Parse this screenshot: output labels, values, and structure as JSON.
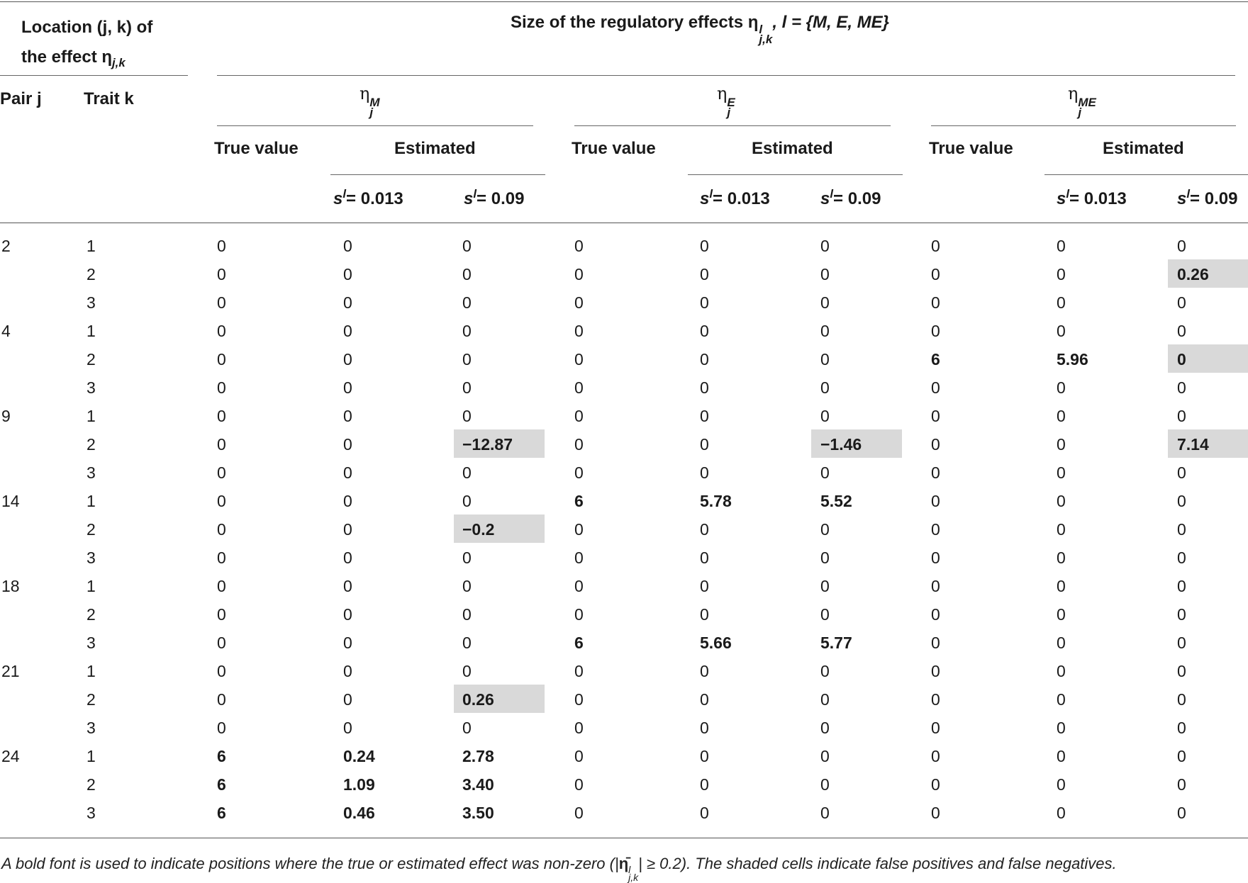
{
  "header": {
    "location_line1": "Location (j, k) of",
    "location_line2": "the effect η",
    "location_sub": "j,k",
    "size_title": "Size of the regulatory effects η",
    "size_sup": "l",
    "size_sub": "j,k",
    "size_set": ",  l = {M, E, ME}",
    "pair_label": "Pair j",
    "trait_label": "Trait k",
    "groups": [
      {
        "eta": "η",
        "sub": "j",
        "sup": "M"
      },
      {
        "eta": "η",
        "sub": "j",
        "sup": "E"
      },
      {
        "eta": "η",
        "sub": "j",
        "sup": "ME"
      }
    ],
    "true_value_label": "True value",
    "estimated_label": "Estimated",
    "s_label": "s",
    "s_sup": "l",
    "s_values": [
      "= 0.013",
      "= 0.09"
    ]
  },
  "rows": [
    {
      "pair": "2",
      "trait": "1",
      "v": [
        "0",
        "0",
        "0",
        "0",
        "0",
        "0",
        "0",
        "0",
        "0"
      ]
    },
    {
      "pair": "",
      "trait": "2",
      "v": [
        "0",
        "0",
        "0",
        "0",
        "0",
        "0",
        "0",
        "0",
        "0.26"
      ]
    },
    {
      "pair": "",
      "trait": "3",
      "v": [
        "0",
        "0",
        "0",
        "0",
        "0",
        "0",
        "0",
        "0",
        "0"
      ]
    },
    {
      "pair": "4",
      "trait": "1",
      "v": [
        "0",
        "0",
        "0",
        "0",
        "0",
        "0",
        "0",
        "0",
        "0"
      ]
    },
    {
      "pair": "",
      "trait": "2",
      "v": [
        "0",
        "0",
        "0",
        "0",
        "0",
        "0",
        "6",
        "5.96",
        "0"
      ]
    },
    {
      "pair": "",
      "trait": "3",
      "v": [
        "0",
        "0",
        "0",
        "0",
        "0",
        "0",
        "0",
        "0",
        "0"
      ]
    },
    {
      "pair": "9",
      "trait": "1",
      "v": [
        "0",
        "0",
        "0",
        "0",
        "0",
        "0",
        "0",
        "0",
        "0"
      ]
    },
    {
      "pair": "",
      "trait": "2",
      "v": [
        "0",
        "0",
        "−12.87",
        "0",
        "0",
        "−1.46",
        "0",
        "0",
        "7.14"
      ]
    },
    {
      "pair": "",
      "trait": "3",
      "v": [
        "0",
        "0",
        "0",
        "0",
        "0",
        "0",
        "0",
        "0",
        "0"
      ]
    },
    {
      "pair": "14",
      "trait": "1",
      "v": [
        "0",
        "0",
        "0",
        "6",
        "5.78",
        "5.52",
        "0",
        "0",
        "0"
      ]
    },
    {
      "pair": "",
      "trait": "2",
      "v": [
        "0",
        "0",
        "−0.2",
        "0",
        "0",
        "0",
        "0",
        "0",
        "0"
      ]
    },
    {
      "pair": "",
      "trait": "3",
      "v": [
        "0",
        "0",
        "0",
        "0",
        "0",
        "0",
        "0",
        "0",
        "0"
      ]
    },
    {
      "pair": "18",
      "trait": "1",
      "v": [
        "0",
        "0",
        "0",
        "0",
        "0",
        "0",
        "0",
        "0",
        "0"
      ]
    },
    {
      "pair": "",
      "trait": "2",
      "v": [
        "0",
        "0",
        "0",
        "0",
        "0",
        "0",
        "0",
        "0",
        "0"
      ]
    },
    {
      "pair": "",
      "trait": "3",
      "v": [
        "0",
        "0",
        "0",
        "6",
        "5.66",
        "5.77",
        "0",
        "0",
        "0"
      ]
    },
    {
      "pair": "21",
      "trait": "1",
      "v": [
        "0",
        "0",
        "0",
        "0",
        "0",
        "0",
        "0",
        "0",
        "0"
      ]
    },
    {
      "pair": "",
      "trait": "2",
      "v": [
        "0",
        "0",
        "0.26",
        "0",
        "0",
        "0",
        "0",
        "0",
        "0"
      ]
    },
    {
      "pair": "",
      "trait": "3",
      "v": [
        "0",
        "0",
        "0",
        "0",
        "0",
        "0",
        "0",
        "0",
        "0"
      ]
    },
    {
      "pair": "24",
      "trait": "1",
      "v": [
        "6",
        "0.24",
        "2.78",
        "0",
        "0",
        "0",
        "0",
        "0",
        "0"
      ]
    },
    {
      "pair": "",
      "trait": "2",
      "v": [
        "6",
        "1.09",
        "3.40",
        "0",
        "0",
        "0",
        "0",
        "0",
        "0"
      ]
    },
    {
      "pair": "",
      "trait": "3",
      "v": [
        "6",
        "0.46",
        "3.50",
        "0",
        "0",
        "0",
        "0",
        "0",
        "0"
      ]
    }
  ],
  "bold_cells": [
    [
      1,
      8
    ],
    [
      4,
      6
    ],
    [
      4,
      7
    ],
    [
      4,
      8
    ],
    [
      7,
      2
    ],
    [
      7,
      5
    ],
    [
      7,
      8
    ],
    [
      9,
      3
    ],
    [
      9,
      4
    ],
    [
      9,
      5
    ],
    [
      10,
      2
    ],
    [
      14,
      3
    ],
    [
      14,
      4
    ],
    [
      14,
      5
    ],
    [
      16,
      2
    ],
    [
      18,
      0
    ],
    [
      18,
      1
    ],
    [
      18,
      2
    ],
    [
      19,
      0
    ],
    [
      19,
      1
    ],
    [
      19,
      2
    ],
    [
      20,
      0
    ],
    [
      20,
      1
    ],
    [
      20,
      2
    ]
  ],
  "shaded_cells": [
    [
      1,
      8
    ],
    [
      4,
      8
    ],
    [
      7,
      2
    ],
    [
      7,
      5
    ],
    [
      7,
      8
    ],
    [
      10,
      2
    ],
    [
      16,
      2
    ]
  ],
  "footnote": {
    "part1": "A bold font is used to indicate positions where the true or estimated effect was non-zero (|",
    "eta_bar": "η̄",
    "sup": "l",
    "sub": "j,k",
    "part2": "|  ≥ 0.2). The shaded cells indicate false positives and false negatives."
  }
}
